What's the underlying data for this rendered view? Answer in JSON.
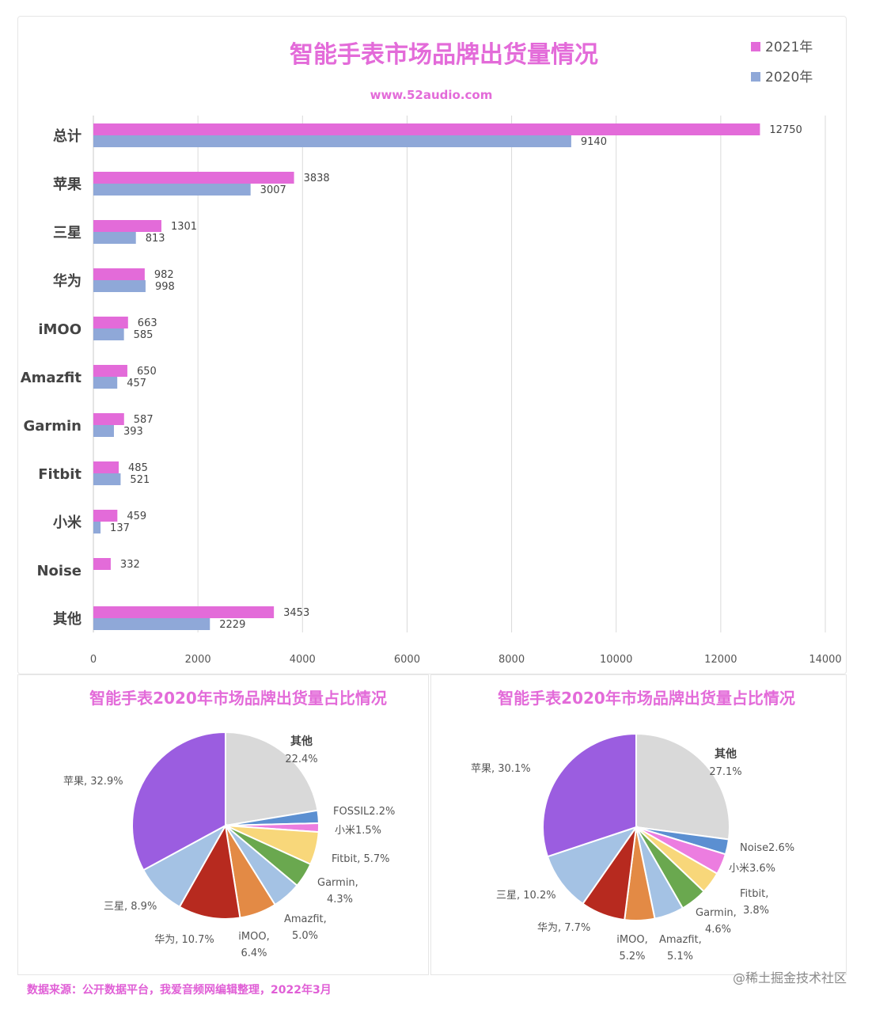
{
  "chart_data": [
    {
      "type": "bar",
      "orientation": "horizontal",
      "title": "智能手表市场品牌出货量情况",
      "subtitle": "www.52audio.com",
      "categories": [
        "总计",
        "苹果",
        "三星",
        "华为",
        "iMOO",
        "Amazfit",
        "Garmin",
        "Fitbit",
        "小米",
        "Noise",
        "其他"
      ],
      "series": [
        {
          "name": "2021年",
          "color": "#e36bd9",
          "values": [
            12750,
            3838,
            1301,
            982,
            663,
            650,
            587,
            485,
            459,
            332,
            3453
          ]
        },
        {
          "name": "2020年",
          "color": "#8fa8d8",
          "values": [
            9140,
            3007,
            813,
            998,
            585,
            457,
            393,
            521,
            137,
            null,
            2229
          ]
        }
      ],
      "xlim": [
        0,
        14000
      ],
      "xticks": [
        0,
        2000,
        4000,
        6000,
        8000,
        10000,
        12000,
        14000
      ],
      "grid": true,
      "legend": "top-right"
    },
    {
      "type": "pie",
      "title": "智能手表2020年市场品牌出货量占比情况",
      "slices": [
        {
          "label": "其他",
          "value": 22.4,
          "text": "22.4%",
          "color": "#d9d9d9"
        },
        {
          "label": "FOSSIL",
          "value": 2.2,
          "text": "FOSSIL2.2%",
          "color": "#5b8fd1"
        },
        {
          "label": "小米",
          "value": 1.5,
          "text": "小米1.5%",
          "color": "#ec7de0"
        },
        {
          "label": "Fitbit",
          "value": 5.7,
          "text": "Fitbit, 5.7%",
          "color": "#f8d77a"
        },
        {
          "label": "Garmin",
          "value": 4.3,
          "text1": "Garmin,",
          "text2": "4.3%",
          "color": "#6aa84f"
        },
        {
          "label": "Amazfit",
          "value": 5.0,
          "text1": "Amazfit,",
          "text2": "5.0%",
          "color": "#a4c2e4"
        },
        {
          "label": "iMOO",
          "value": 6.4,
          "text1": "iMOO,",
          "text2": "6.4%",
          "color": "#e38a45"
        },
        {
          "label": "华为",
          "value": 10.7,
          "text": "华为, 10.7%",
          "color": "#b72a1f"
        },
        {
          "label": "三星",
          "value": 8.9,
          "text": "三星, 8.9%",
          "color": "#a4c2e4"
        },
        {
          "label": "苹果",
          "value": 32.9,
          "text": "苹果, 32.9%",
          "color": "#9b5de0"
        }
      ]
    },
    {
      "type": "pie",
      "title": "智能手表2020年市场品牌出货量占比情况",
      "slices": [
        {
          "label": "其他",
          "value": 27.1,
          "text": "27.1%",
          "color": "#d9d9d9"
        },
        {
          "label": "Noise",
          "value": 2.6,
          "text": "Noise2.6%",
          "color": "#5b8fd1"
        },
        {
          "label": "小米",
          "value": 3.6,
          "text": "小米3.6%",
          "color": "#ec7de0"
        },
        {
          "label": "Fitbit",
          "value": 3.8,
          "text1": "Fitbit,",
          "text2": "3.8%",
          "color": "#f8d77a"
        },
        {
          "label": "Garmin",
          "value": 4.6,
          "text1": "Garmin,",
          "text2": "4.6%",
          "color": "#6aa84f"
        },
        {
          "label": "Amazfit",
          "value": 5.1,
          "text1": "Amazfit,",
          "text2": "5.1%",
          "color": "#a4c2e4"
        },
        {
          "label": "iMOO",
          "value": 5.2,
          "text1": "iMOO,",
          "text2": "5.2%",
          "color": "#e38a45"
        },
        {
          "label": "华为",
          "value": 7.7,
          "text": "华为, 7.7%",
          "color": "#b72a1f"
        },
        {
          "label": "三星",
          "value": 10.2,
          "text": "三星, 10.2%",
          "color": "#a4c2e4"
        },
        {
          "label": "苹果",
          "value": 30.1,
          "text": "苹果, 30.1%",
          "color": "#9b5de0"
        }
      ]
    }
  ],
  "footer": "数据来源：公开数据平台，我爱音频网编辑整理，2022年3月",
  "watermark": "@稀土掘金技术社区"
}
